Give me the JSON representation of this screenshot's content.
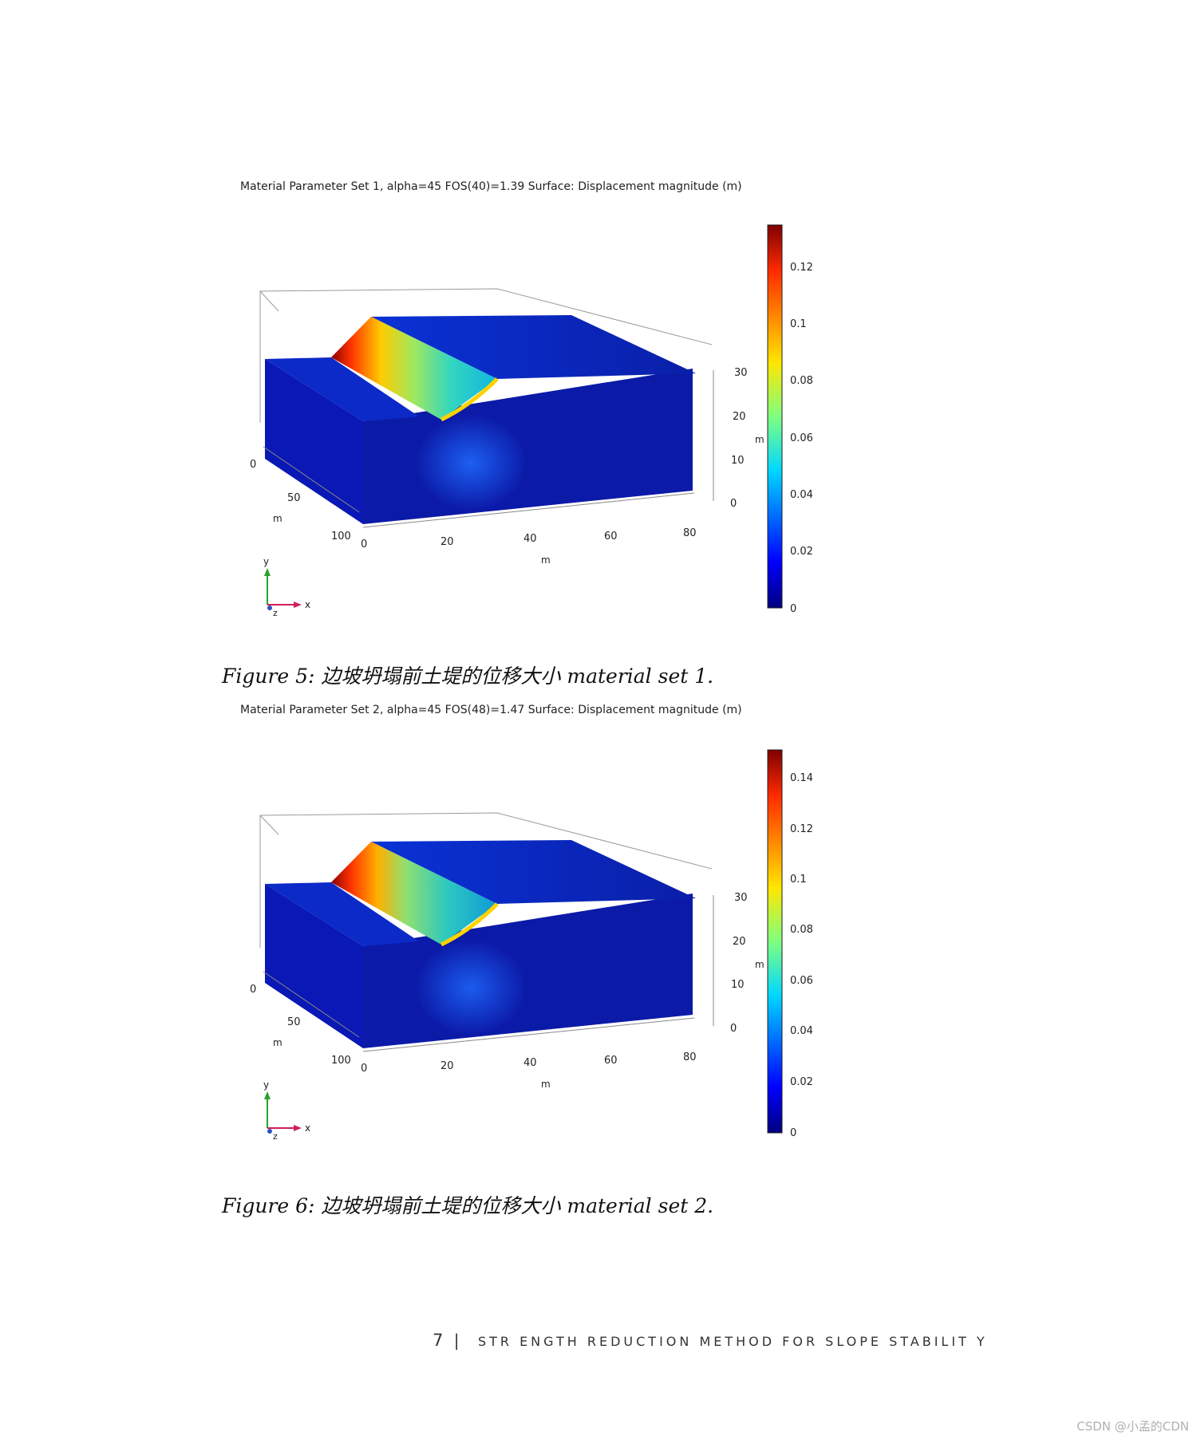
{
  "figures": [
    {
      "plot_title": "Material Parameter Set 1, alpha=45 FOS(40)=1.39  Surface: Displacement magnitude (m)",
      "caption_label": "Figure 5:",
      "caption_text": "边坡坍塌前土堤的位移大小 material set 1.",
      "axis_x_ticks": [
        "0",
        "20",
        "40",
        "60",
        "80"
      ],
      "axis_x_unit": "m",
      "axis_z_ticks": [
        "0",
        "50",
        "100"
      ],
      "axis_z_unit": "m",
      "axis_y_ticks": [
        "30",
        "20",
        "10",
        "0"
      ],
      "axis_y_unit": "m",
      "colorbar_ticks": [
        "0.12",
        "0.1",
        "0.08",
        "0.06",
        "0.04",
        "0.02",
        "0"
      ],
      "colorbar_max": 0.135,
      "triad": {
        "y": "y",
        "x": "x",
        "z": "z"
      }
    },
    {
      "plot_title": "Material Parameter Set 2, alpha=45 FOS(48)=1.47  Surface: Displacement magnitude (m)",
      "caption_label": "Figure 6:",
      "caption_text": "边坡坍塌前土堤的位移大小 material set 2.",
      "axis_x_ticks": [
        "0",
        "20",
        "40",
        "60",
        "80"
      ],
      "axis_x_unit": "m",
      "axis_z_ticks": [
        "0",
        "50",
        "100"
      ],
      "axis_z_unit": "m",
      "axis_y_ticks": [
        "30",
        "20",
        "10",
        "0"
      ],
      "axis_y_unit": "m",
      "colorbar_ticks": [
        "0.14",
        "0.12",
        "0.1",
        "0.08",
        "0.06",
        "0.04",
        "0.02",
        "0"
      ],
      "colorbar_max": 0.152,
      "triad": {
        "y": "y",
        "x": "x",
        "z": "z"
      }
    }
  ],
  "footer": {
    "page_number": "7",
    "separator": "|",
    "running_title": "STR ENGTH REDUCTION METHOD FOR SLOPE STABILIT Y"
  },
  "watermark": "CSDN @小孟的CDN"
}
